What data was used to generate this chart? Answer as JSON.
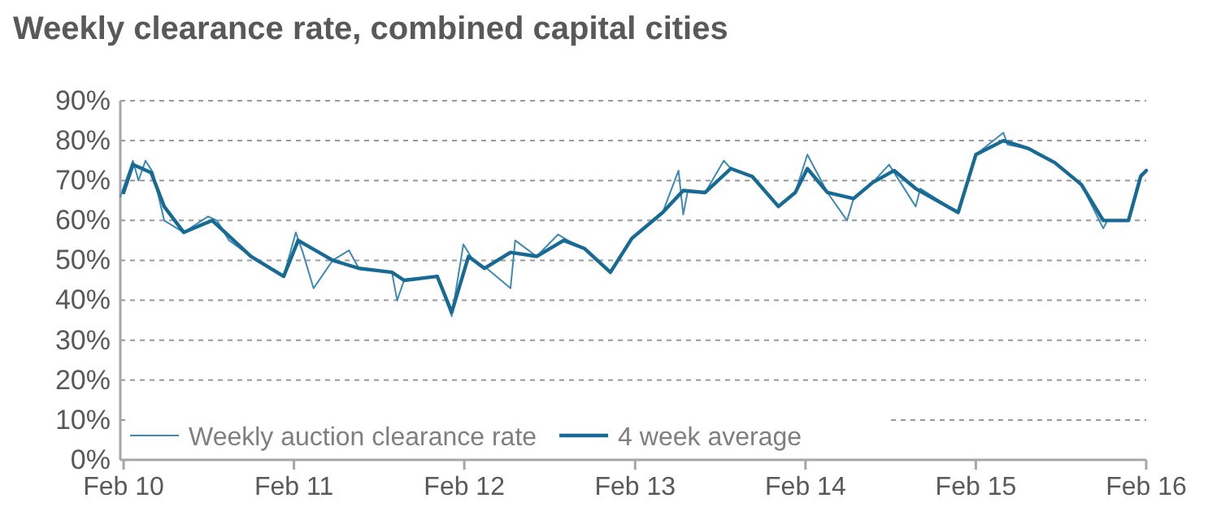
{
  "chart_data": {
    "type": "line",
    "title": "Weekly clearance rate, combined capital cities",
    "xlim": [
      "2010-01-25",
      "2016-02-01"
    ],
    "xticks": [
      {
        "value": "2010-02-01",
        "label": "Feb 10"
      },
      {
        "value": "2011-02-01",
        "label": "Feb 11"
      },
      {
        "value": "2012-02-01",
        "label": "Feb 12"
      },
      {
        "value": "2013-02-01",
        "label": "Feb 13"
      },
      {
        "value": "2014-02-01",
        "label": "Feb 14"
      },
      {
        "value": "2015-02-01",
        "label": "Feb 15"
      },
      {
        "value": "2016-02-01",
        "label": "Feb 16"
      }
    ],
    "ylim": [
      0,
      90
    ],
    "yticks": [
      {
        "value": 0,
        "label": "0%"
      },
      {
        "value": 10,
        "label": "10%"
      },
      {
        "value": 20,
        "label": "20%"
      },
      {
        "value": 30,
        "label": "30%"
      },
      {
        "value": 40,
        "label": "40%"
      },
      {
        "value": 50,
        "label": "50%"
      },
      {
        "value": 60,
        "label": "60%"
      },
      {
        "value": 70,
        "label": "70%"
      },
      {
        "value": 80,
        "label": "80%"
      },
      {
        "value": 90,
        "label": "90%"
      }
    ],
    "grid": "y",
    "legend": "bottom left",
    "marker": "none",
    "line_style": "solid",
    "series": [
      {
        "name": "Weekly auction clearance rate",
        "color": "#3d8ab5",
        "x": [
          "2010-01-25",
          "2010-02-21",
          "2010-03-05",
          "2010-03-20",
          "2010-04-05",
          "2010-04-29",
          "2010-06-10",
          "2010-08-01",
          "2010-08-20",
          "2010-09-15",
          "2010-11-01",
          "2011-01-10",
          "2011-02-05",
          "2011-02-20",
          "2011-03-15",
          "2011-04-25",
          "2011-05-30",
          "2011-06-20",
          "2011-08-30",
          "2011-09-10",
          "2011-09-25",
          "2011-12-05",
          "2012-01-05",
          "2012-01-30",
          "2012-02-20",
          "2012-03-20",
          "2012-05-10",
          "2012-05-20",
          "2012-07-05",
          "2012-08-20",
          "2012-09-10",
          "2012-10-15",
          "2012-12-10",
          "2013-01-25",
          "2013-04-01",
          "2013-05-05",
          "2013-05-15",
          "2013-05-25",
          "2013-07-01",
          "2013-08-10",
          "2013-08-25",
          "2013-10-10",
          "2013-12-05",
          "2014-01-10",
          "2014-02-05",
          "2014-03-20",
          "2014-05-01",
          "2014-05-15",
          "2014-06-25",
          "2014-07-30",
          "2014-08-10",
          "2014-09-25",
          "2014-10-05",
          "2014-12-25",
          "2015-02-01",
          "2015-04-01",
          "2015-04-10",
          "2015-05-25",
          "2015-07-20",
          "2015-09-15",
          "2015-11-01",
          "2015-11-10",
          "2015-12-25",
          "2016-01-20",
          "2016-02-01"
        ],
        "values": [
          66,
          75,
          70,
          75,
          72,
          60,
          57,
          61,
          60,
          55,
          51,
          46,
          57,
          52,
          43,
          50,
          52.5,
          48,
          47,
          40,
          45,
          46,
          36,
          54,
          50,
          48,
          43,
          55,
          51,
          56.5,
          55,
          53,
          47,
          55.5,
          62,
          72.5,
          61.5,
          67.5,
          67,
          75,
          73,
          71,
          63.5,
          67,
          76.5,
          67,
          60,
          65.5,
          69.5,
          74,
          72,
          63.5,
          68,
          62,
          76.5,
          82,
          79,
          78,
          74.5,
          69,
          58,
          60,
          60,
          71.5,
          72.5
        ]
      },
      {
        "name": "4 week average",
        "color": "#166a94",
        "x": [
          "2010-02-01",
          "2010-02-21",
          "2010-04-01",
          "2010-04-29",
          "2010-06-10",
          "2010-08-10",
          "2010-11-01",
          "2011-01-10",
          "2011-02-10",
          "2011-04-25",
          "2011-06-20",
          "2011-08-30",
          "2011-09-25",
          "2011-12-05",
          "2012-01-05",
          "2012-02-10",
          "2012-03-15",
          "2012-05-10",
          "2012-07-05",
          "2012-09-01",
          "2012-10-15",
          "2012-12-10",
          "2013-01-25",
          "2013-04-01",
          "2013-05-15",
          "2013-07-01",
          "2013-08-25",
          "2013-10-10",
          "2013-12-05",
          "2014-01-10",
          "2014-02-05",
          "2014-03-20",
          "2014-05-15",
          "2014-06-25",
          "2014-08-10",
          "2014-09-25",
          "2014-12-25",
          "2015-02-01",
          "2015-04-01",
          "2015-05-25",
          "2015-07-20",
          "2015-09-15",
          "2015-11-01",
          "2015-12-25",
          "2016-01-20",
          "2016-02-01"
        ],
        "values": [
          67,
          74,
          72,
          63.5,
          57,
          60,
          51,
          46,
          55,
          50,
          48,
          47,
          45,
          46,
          37,
          51,
          48,
          52,
          51,
          55,
          53,
          47,
          55.5,
          62,
          67.5,
          67,
          73,
          71,
          63.5,
          67,
          73,
          67,
          65.5,
          69.5,
          72.5,
          68,
          62,
          76.5,
          80,
          78,
          74.5,
          69,
          60,
          60,
          71,
          72.5
        ]
      }
    ]
  }
}
